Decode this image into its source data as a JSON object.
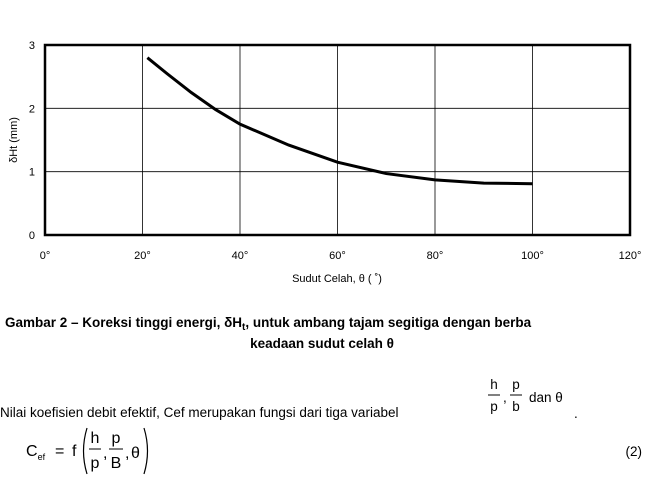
{
  "chart_data": {
    "type": "line",
    "x_label": "Sudut Celah, θ ( ˚)",
    "y_label": "δHt (mm)",
    "x": [
      21,
      25,
      30,
      35,
      40,
      50,
      60,
      70,
      80,
      90,
      100
    ],
    "series": [
      {
        "color": "#000000",
        "values": [
          2.8,
          2.55,
          2.25,
          1.98,
          1.75,
          1.42,
          1.15,
          0.97,
          0.87,
          0.82,
          0.81
        ]
      }
    ],
    "xlim": [
      0,
      120
    ],
    "ylim": [
      0,
      3
    ],
    "xticks": [
      {
        "value": 0,
        "label": "0°"
      },
      {
        "value": 20,
        "label": "20°"
      },
      {
        "value": 40,
        "label": "40°"
      },
      {
        "value": 60,
        "label": "60°"
      },
      {
        "value": 80,
        "label": "80°"
      },
      {
        "value": 100,
        "label": "100°"
      },
      {
        "value": 120,
        "label": "120°"
      }
    ],
    "yticks": [
      0,
      1,
      2,
      3
    ],
    "grid": true
  },
  "caption": {
    "start": "Gambar 2 – Koreksi tinggi energi, δH",
    "sub": "t",
    "end": ", untuk ambang tajam segitiga dengan berba",
    "line2": "keadaan sudut celah θ"
  },
  "paragraph": {
    "text": "Nilai koefisien debit efektif, Cef merupakan fungsi dari tiga variabel",
    "fractions": [
      {
        "num": "h",
        "den": "p"
      },
      {
        "num": "p",
        "den": "b"
      }
    ],
    "sep": ",",
    "tail": "dan θ",
    "end": "."
  },
  "equation": {
    "lhs": "C",
    "lhs_sub": "ef",
    "op": "=",
    "func": "f",
    "fractions": [
      {
        "num": "h",
        "den": "p"
      },
      {
        "num": "p",
        "den": "B"
      }
    ],
    "sep": ",",
    "theta": "θ",
    "number": "(2)"
  }
}
